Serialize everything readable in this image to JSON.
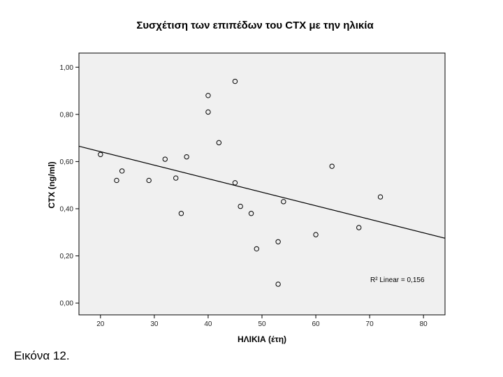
{
  "chart_data": {
    "type": "scatter",
    "title": "Συσχέτιση των επιπέδων του CTX με την ηλικία",
    "xlabel": "ΗΛΙΚΙΑ (έτη)",
    "ylabel": "CTX (ng/ml)",
    "xlim": [
      16,
      84
    ],
    "ylim": [
      -0.05,
      1.06
    ],
    "x_ticks": [
      20,
      30,
      40,
      50,
      60,
      70,
      80
    ],
    "y_ticks": [
      0.0,
      0.2,
      0.4,
      0.6,
      0.8,
      1.0
    ],
    "x_tick_labels": [
      "20",
      "30",
      "40",
      "50",
      "60",
      "70",
      "80"
    ],
    "y_tick_labels": [
      "0,00",
      "0,20",
      "0,40",
      "0,60",
      "0,80",
      "1,00"
    ],
    "points": [
      {
        "x": 20,
        "y": 0.63
      },
      {
        "x": 23,
        "y": 0.52
      },
      {
        "x": 24,
        "y": 0.56
      },
      {
        "x": 29,
        "y": 0.52
      },
      {
        "x": 32,
        "y": 0.61
      },
      {
        "x": 34,
        "y": 0.53
      },
      {
        "x": 35,
        "y": 0.38
      },
      {
        "x": 36,
        "y": 0.62
      },
      {
        "x": 40,
        "y": 0.88
      },
      {
        "x": 40,
        "y": 0.81
      },
      {
        "x": 42,
        "y": 0.68
      },
      {
        "x": 45,
        "y": 0.94
      },
      {
        "x": 45,
        "y": 0.51
      },
      {
        "x": 46,
        "y": 0.41
      },
      {
        "x": 48,
        "y": 0.38
      },
      {
        "x": 49,
        "y": 0.23
      },
      {
        "x": 53,
        "y": 0.26
      },
      {
        "x": 53,
        "y": 0.08
      },
      {
        "x": 54,
        "y": 0.43
      },
      {
        "x": 60,
        "y": 0.29
      },
      {
        "x": 63,
        "y": 0.58
      },
      {
        "x": 68,
        "y": 0.32
      },
      {
        "x": 72,
        "y": 0.45
      }
    ],
    "fit_line": {
      "type": "linear",
      "x": [
        16,
        84
      ],
      "y": [
        0.665,
        0.275
      ]
    },
    "annotation": "R² Linear = 0,156",
    "grid": false,
    "plot_background": "#f0f0f0"
  },
  "caption": "Εικόνα 12."
}
